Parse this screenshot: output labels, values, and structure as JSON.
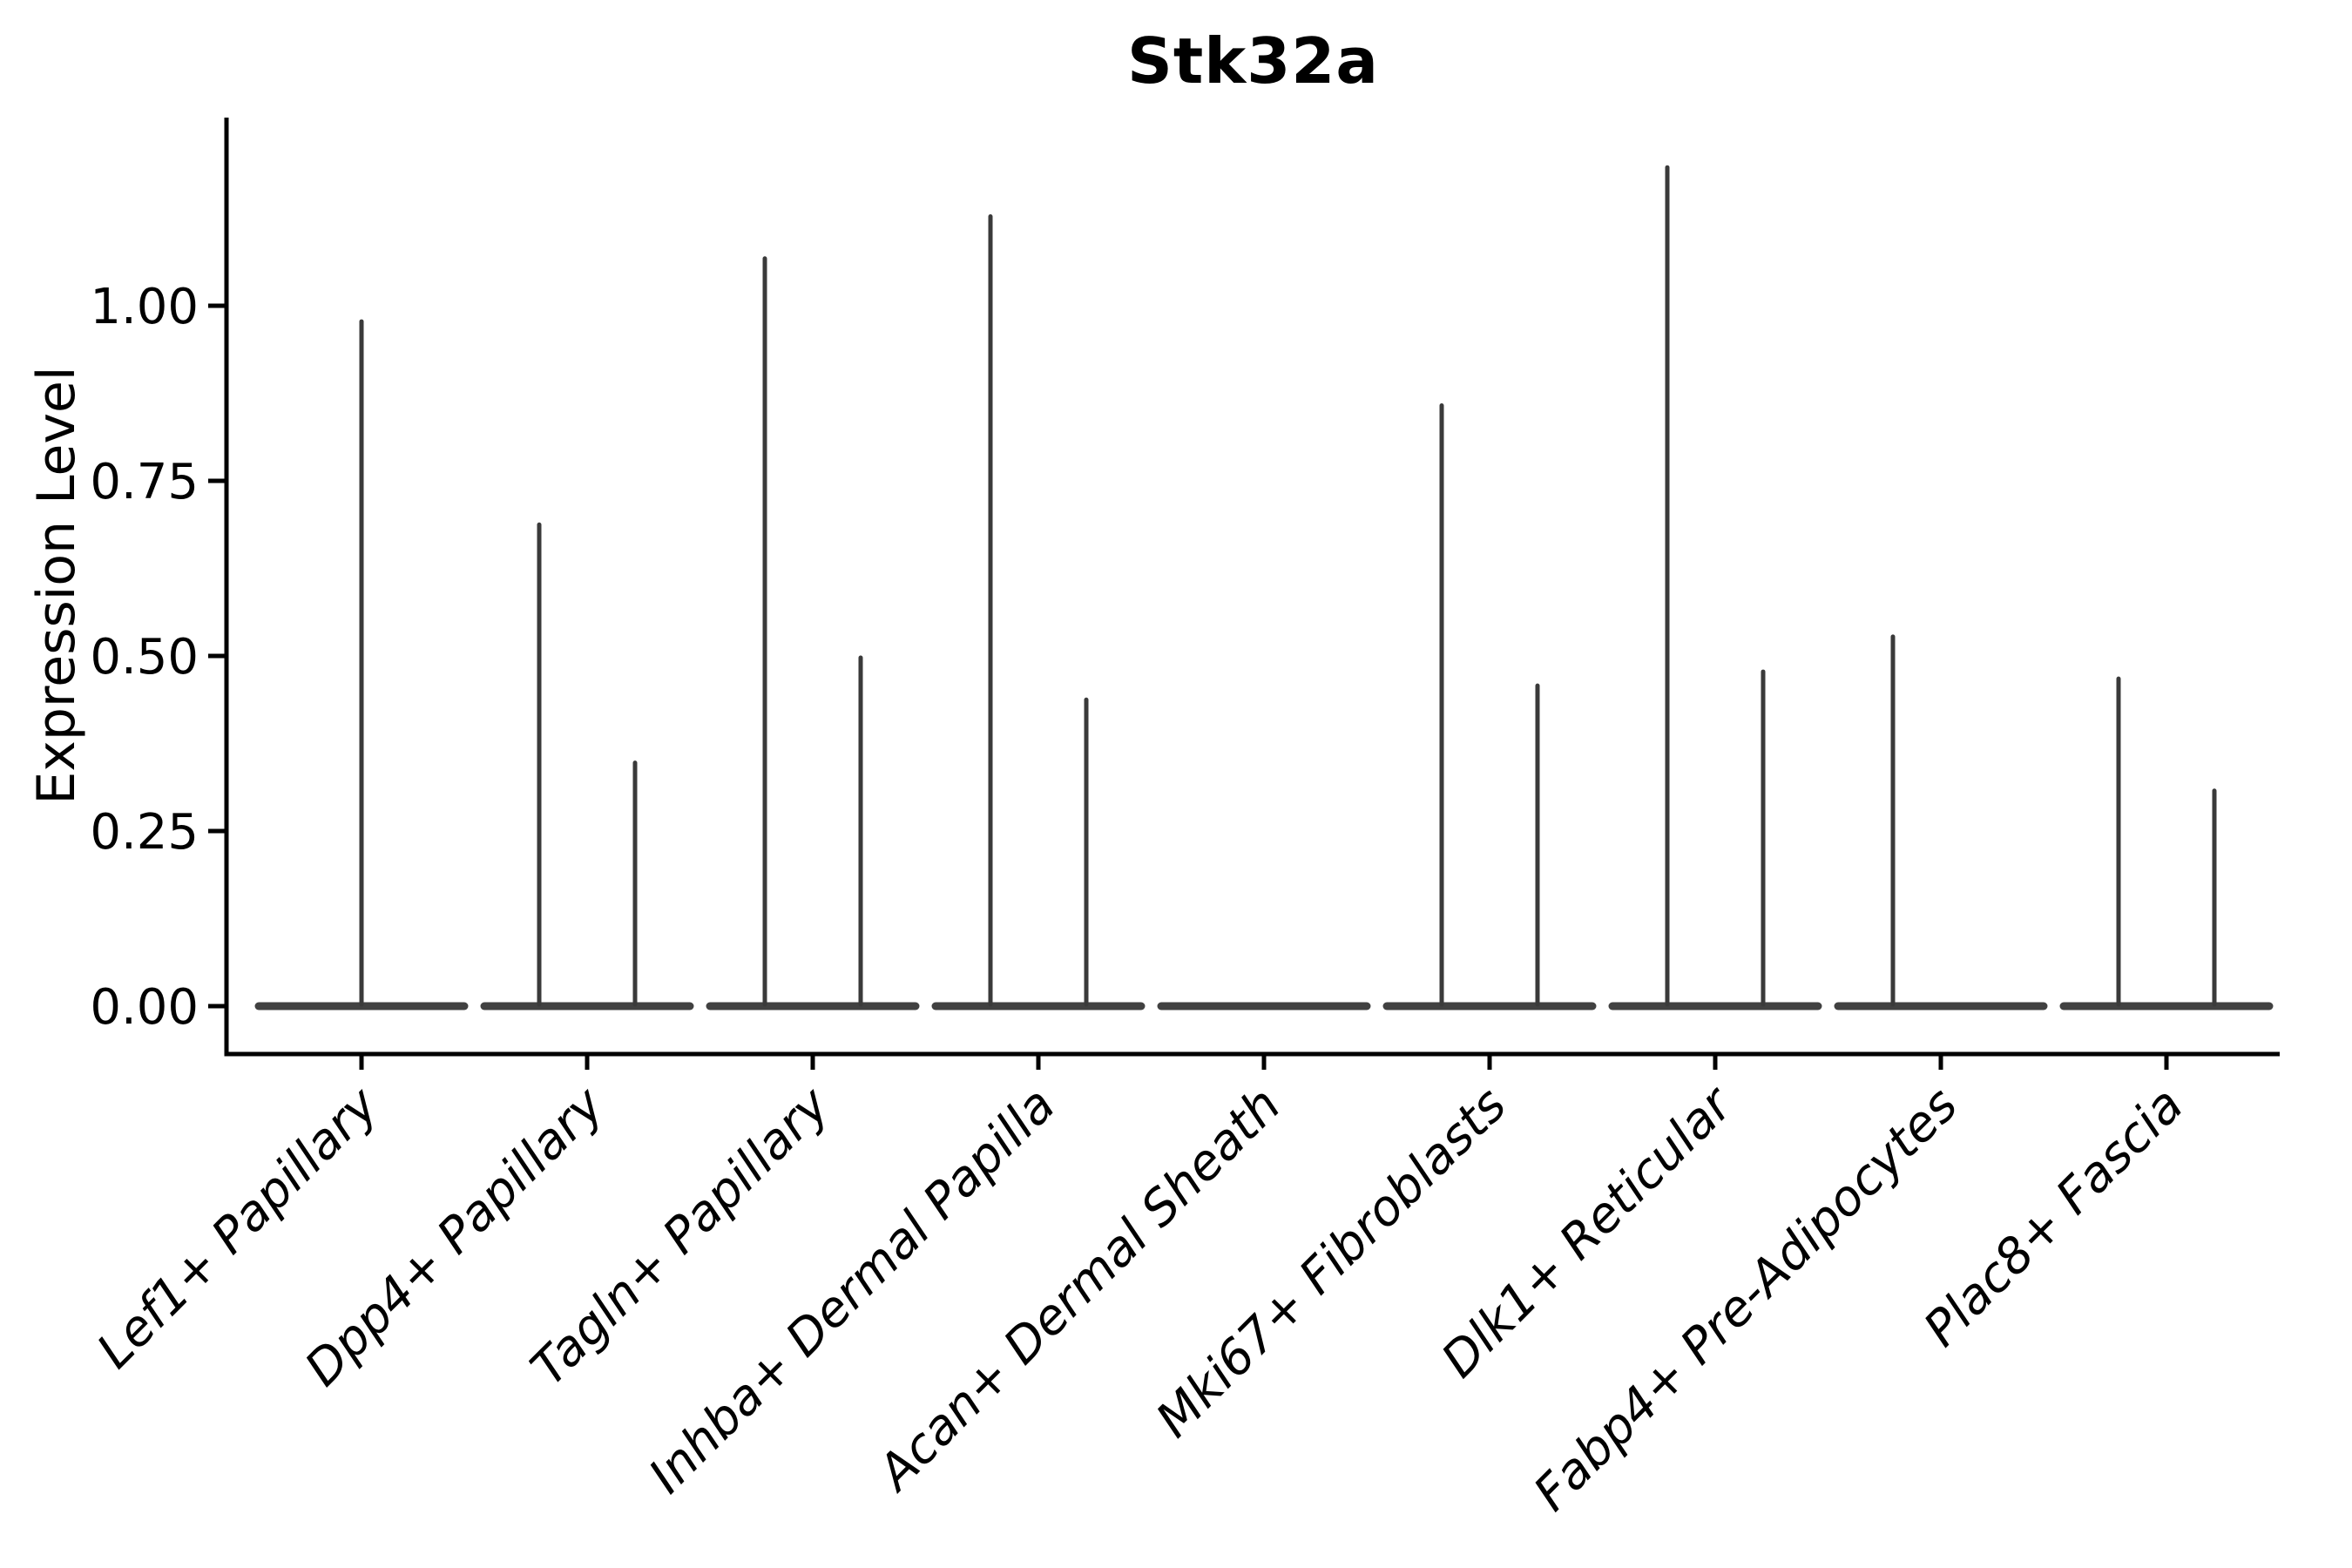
{
  "title": "Stk32a",
  "y_axis": {
    "label": "Expression Level",
    "tick_labels": [
      "1.00",
      "0.75",
      "0.50",
      "0.25",
      "0.00"
    ]
  },
  "chart_data": {
    "type": "violin",
    "title": "Stk32a",
    "xlabel": "",
    "ylabel": "Expression Level",
    "ylim": [
      -0.07,
      1.27
    ],
    "yticks": [
      1.0,
      0.75,
      0.5,
      0.25,
      0.0
    ],
    "ytick_labels": [
      "1.00",
      "0.75",
      "0.50",
      "0.25",
      "0.00"
    ],
    "grid": false,
    "legend_position": "none",
    "x_tick_label_rotation_deg": 45,
    "x_tick_label_style": "italic",
    "categories": [
      "Lef1+ Papillary",
      "Dpp4+ Papillary",
      "Tagln+ Papillary",
      "Inhba+ Dermal Papilla",
      "Acan+ Dermal Sheath",
      "Mki67+ Fibroblasts",
      "Dlk1+ Reticular",
      "Fabp4+ Pre-Adipocytes",
      "Plac8+ Fascia"
    ],
    "description": "Each category shows an extremely thin violin: a flat dense bar at expression 0 plus narrow vertical tail spikes reaching the maximum expression value.",
    "violins": [
      {
        "category": "Lef1+ Papillary",
        "baseline_value": 0.0,
        "spikes": [
          {
            "position": "center",
            "max": 0.98
          }
        ]
      },
      {
        "category": "Dpp4+ Papillary",
        "baseline_value": 0.0,
        "spikes": [
          {
            "position": "left",
            "max": 0.69
          },
          {
            "position": "right",
            "max": 0.35
          }
        ]
      },
      {
        "category": "Tagln+ Papillary",
        "baseline_value": 0.0,
        "spikes": [
          {
            "position": "left",
            "max": 1.07
          },
          {
            "position": "right",
            "max": 0.5
          }
        ]
      },
      {
        "category": "Inhba+ Dermal Papilla",
        "baseline_value": 0.0,
        "spikes": [
          {
            "position": "left",
            "max": 1.13
          },
          {
            "position": "right",
            "max": 0.44
          }
        ]
      },
      {
        "category": "Acan+ Dermal Sheath",
        "baseline_value": 0.0,
        "spikes": []
      },
      {
        "category": "Mki67+ Fibroblasts",
        "baseline_value": 0.0,
        "spikes": [
          {
            "position": "left",
            "max": 0.86
          },
          {
            "position": "right",
            "max": 0.46
          }
        ]
      },
      {
        "category": "Dlk1+ Reticular",
        "baseline_value": 0.0,
        "spikes": [
          {
            "position": "left",
            "max": 1.2
          },
          {
            "position": "right",
            "max": 0.48
          }
        ]
      },
      {
        "category": "Fabp4+ Pre-Adipocytes",
        "baseline_value": 0.0,
        "spikes": [
          {
            "position": "left",
            "max": 0.53
          }
        ]
      },
      {
        "category": "Plac8+ Fascia",
        "baseline_value": 0.0,
        "spikes": [
          {
            "position": "left",
            "max": 0.47
          },
          {
            "position": "right",
            "max": 0.31
          }
        ]
      }
    ],
    "colors": {
      "violin": "#3a3a3a",
      "axis": "#000000",
      "text": "#000000",
      "background": "#ffffff"
    }
  }
}
